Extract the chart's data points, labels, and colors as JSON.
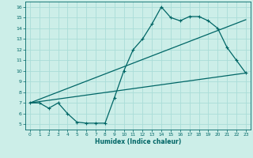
{
  "xlabel": "Humidex (Indice chaleur)",
  "bg_color": "#cceee8",
  "grid_color": "#aaddd8",
  "line_color": "#006666",
  "xlim": [
    -0.5,
    23.5
  ],
  "ylim": [
    4.5,
    16.5
  ],
  "xticks": [
    0,
    1,
    2,
    3,
    4,
    5,
    6,
    7,
    8,
    9,
    10,
    11,
    12,
    13,
    14,
    15,
    16,
    17,
    18,
    19,
    20,
    21,
    22,
    23
  ],
  "yticks": [
    5,
    6,
    7,
    8,
    9,
    10,
    11,
    12,
    13,
    14,
    15,
    16
  ],
  "line1_x": [
    0,
    1,
    2,
    3,
    4,
    5,
    6,
    7,
    8,
    9,
    10,
    11,
    12,
    13,
    14,
    15,
    16,
    17,
    18,
    19,
    20,
    21,
    22,
    23
  ],
  "line1_y": [
    7,
    7,
    6.5,
    7,
    6,
    5.2,
    5.1,
    5.1,
    5.1,
    7.5,
    10,
    12,
    13,
    14.4,
    16,
    15,
    14.7,
    15.1,
    15.1,
    14.7,
    14,
    12.2,
    11,
    9.8
  ],
  "line2_x": [
    0,
    23
  ],
  "line2_y": [
    7,
    9.8
  ],
  "line3_x": [
    0,
    23
  ],
  "line3_y": [
    7,
    14.8
  ]
}
